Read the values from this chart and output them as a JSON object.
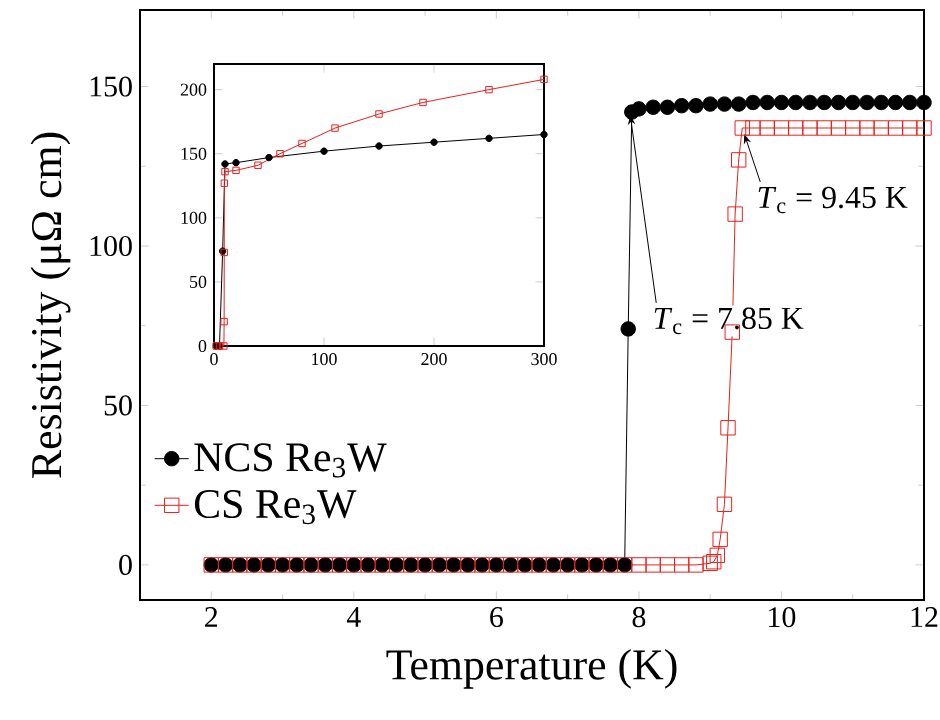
{
  "chart_data": [
    {
      "type": "line",
      "xlabel": "Temperature (K)",
      "ylabel": "Resistivity (μΩ cm)",
      "xlim": [
        1,
        12
      ],
      "ylim": [
        -11,
        174
      ],
      "xticks": [
        2,
        4,
        6,
        8,
        10,
        12
      ],
      "yticks": [
        0,
        50,
        100,
        150
      ],
      "legend": "left",
      "grid": false,
      "line_style": "solid",
      "series": [
        {
          "name": "NCS Re$_{3}$W",
          "color": "#000000",
          "marker": "circle",
          "x": [
            2.0,
            2.2,
            2.4,
            2.6,
            2.8,
            3.0,
            3.2,
            3.4,
            3.6,
            3.8,
            4.0,
            4.2,
            4.4,
            4.6,
            4.8,
            5.0,
            5.2,
            5.4,
            5.6,
            5.8,
            6.0,
            6.2,
            6.4,
            6.6,
            6.8,
            7.0,
            7.2,
            7.4,
            7.6,
            7.8,
            7.85,
            7.9,
            8.0,
            8.2,
            8.4,
            8.6,
            8.8,
            9.0,
            9.2,
            9.4,
            9.6,
            9.8,
            10.0,
            10.2,
            10.4,
            10.6,
            10.8,
            11.0,
            11.2,
            11.4,
            11.6,
            11.8,
            12.0
          ],
          "values": [
            0,
            0,
            0,
            0,
            0,
            0,
            0,
            0,
            0,
            0,
            0,
            0,
            0,
            0,
            0,
            0,
            0,
            0,
            0,
            0,
            0,
            0,
            0,
            0,
            0,
            0,
            0,
            0,
            0,
            0,
            74,
            142,
            143,
            143.5,
            143.5,
            144,
            144,
            144.5,
            144.5,
            144.5,
            145,
            145,
            145,
            145,
            145,
            145,
            145,
            145,
            145,
            145,
            145,
            145,
            145
          ]
        },
        {
          "name": "CS Re$_{3}$W",
          "color": "#e8201c",
          "marker": "square",
          "x": [
            2.0,
            2.2,
            2.4,
            2.6,
            2.8,
            3.0,
            3.2,
            3.4,
            3.6,
            3.8,
            4.0,
            4.2,
            4.4,
            4.6,
            4.8,
            5.0,
            5.2,
            5.4,
            5.6,
            5.8,
            6.0,
            6.2,
            6.4,
            6.6,
            6.8,
            7.0,
            7.2,
            7.4,
            7.6,
            7.8,
            8.0,
            8.2,
            8.4,
            8.6,
            8.8,
            9.0,
            9.05,
            9.1,
            9.14,
            9.2,
            9.25,
            9.31,
            9.35,
            9.4,
            9.45,
            9.6,
            9.8,
            10.0,
            10.2,
            10.4,
            10.6,
            10.8,
            11.0,
            11.2,
            11.4,
            11.6,
            11.8,
            12.0
          ],
          "values": [
            0,
            0,
            0,
            0,
            0,
            0,
            0,
            0,
            0,
            0,
            0,
            0,
            0,
            0,
            0,
            0,
            0,
            0,
            0,
            0,
            0,
            0,
            0,
            0,
            0,
            0,
            0,
            0,
            0,
            0,
            0,
            0,
            0,
            0,
            0,
            0.5,
            1,
            3,
            8,
            19,
            43,
            73,
            110,
            127,
            137,
            137,
            137,
            137,
            137,
            137,
            137,
            137,
            137,
            137,
            137,
            137,
            137,
            137
          ]
        }
      ],
      "annotations": [
        {
          "text": "*T*$_{c}$ = 7.85 K",
          "x": 7.85,
          "y": 143
        },
        {
          "text": "*T*$_{c}$ = 9.45 K",
          "x": 9.45,
          "y": 137
        }
      ]
    },
    {
      "type": "line",
      "xlim": [
        0,
        300
      ],
      "ylim": [
        0,
        220
      ],
      "xticks": [
        0,
        100,
        200,
        300
      ],
      "yticks": [
        0,
        50,
        100,
        150,
        200
      ],
      "grid": false,
      "line_style": "solid",
      "series": [
        {
          "color": "#000000",
          "marker": "circle",
          "x": [
            2,
            5,
            7.85,
            10,
            20,
            50,
            100,
            150,
            200,
            250,
            300
          ],
          "values": [
            0,
            0,
            74,
            142,
            143,
            147,
            152,
            156,
            159,
            162,
            165
          ]
        },
        {
          "color": "#e8201c",
          "marker": "square",
          "x": [
            2,
            5,
            9,
            9.2,
            9.31,
            9.4,
            10,
            20,
            40,
            60,
            80,
            110,
            150,
            190,
            250,
            300
          ],
          "values": [
            0,
            0,
            0,
            19,
            73,
            127,
            136,
            137,
            141,
            150,
            158,
            170,
            181,
            190,
            200,
            208
          ]
        }
      ]
    }
  ]
}
